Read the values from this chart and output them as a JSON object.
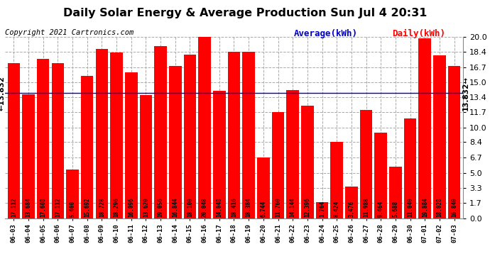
{
  "title": "Daily Solar Energy & Average Production Sun Jul 4 20:31",
  "copyright": "Copyright 2021 Cartronics.com",
  "legend_average": "Average(kWh)",
  "legend_daily": "Daily(kWh)",
  "average_value": 13.832,
  "categories": [
    "06-03",
    "06-04",
    "06-05",
    "06-06",
    "06-07",
    "06-08",
    "06-09",
    "06-10",
    "06-11",
    "06-12",
    "06-13",
    "06-14",
    "06-15",
    "06-16",
    "06-17",
    "06-18",
    "06-19",
    "06-20",
    "06-21",
    "06-22",
    "06-23",
    "06-24",
    "06-25",
    "06-26",
    "06-27",
    "06-28",
    "06-29",
    "06-30",
    "07-01",
    "07-02",
    "07-03"
  ],
  "values": [
    17.112,
    13.684,
    17.608,
    17.112,
    5.4,
    15.692,
    18.728,
    18.296,
    16.096,
    13.62,
    19.056,
    16.844,
    18.1,
    20.048,
    14.048,
    18.416,
    18.384,
    6.744,
    11.76,
    14.144,
    12.396,
    1.764,
    8.424,
    3.476,
    11.988,
    9.464,
    5.688,
    11.04,
    19.884,
    18.028,
    16.84
  ],
  "bar_color": "#ff0000",
  "average_line_color": "#0000cc",
  "background_color": "#ffffff",
  "grid_color": "#aaaaaa",
  "ylim": [
    0.0,
    20.0
  ],
  "yticks": [
    0.0,
    1.7,
    3.3,
    5.0,
    6.7,
    8.4,
    10.0,
    11.7,
    13.4,
    15.0,
    16.7,
    18.4,
    20.0
  ],
  "title_fontsize": 11.5,
  "copyright_fontsize": 7.5,
  "legend_fontsize": 9,
  "bar_label_fontsize": 5.5,
  "avg_label_fontsize": 7.5
}
